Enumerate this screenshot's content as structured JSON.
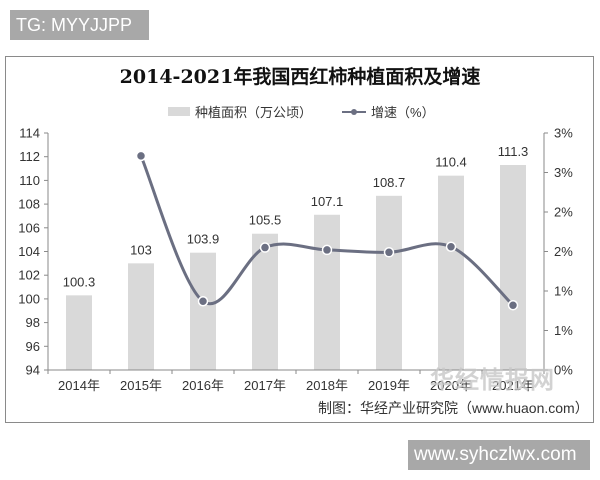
{
  "watermarks": {
    "top_left": "TG: MYYJJPP",
    "bottom_right": "www.syhczlwx.com",
    "logo_text": "华经情报网"
  },
  "chart_data": {
    "type": "bar+line",
    "title": "2014-2021年我国西红柿种植面积及增速",
    "categories": [
      "2014年",
      "2015年",
      "2016年",
      "2017年",
      "2018年",
      "2019年",
      "2020年",
      "2021年"
    ],
    "series": [
      {
        "name": "种植面积（万公顷）",
        "type": "bar",
        "axis": "left",
        "color": "#d9d9d9",
        "values": [
          100.3,
          103,
          103.9,
          105.5,
          107.1,
          108.7,
          110.4,
          111.3
        ],
        "labels": [
          "100.3",
          "103",
          "103.9",
          "105.5",
          "107.1",
          "108.7",
          "110.4",
          "111.3"
        ]
      },
      {
        "name": "增速（%）",
        "type": "line",
        "axis": "right",
        "color": "#6b6f82",
        "values": [
          null,
          2.71,
          0.87,
          1.55,
          1.52,
          1.49,
          1.56,
          0.82
        ]
      }
    ],
    "left_axis": {
      "min": 94,
      "max": 114,
      "step": 2,
      "ticks": [
        "114",
        "112",
        "110",
        "108",
        "106",
        "104",
        "102",
        "100",
        "98",
        "96",
        "94"
      ]
    },
    "right_axis": {
      "min": 0,
      "max": 3,
      "step": 0.5,
      "ticks": [
        "3%",
        "3%",
        "2%",
        "2%",
        "1%",
        "1%",
        "0%"
      ]
    },
    "legend_position": "top",
    "grid": false,
    "source": "制图：华经产业研究院（www.huaon.com）"
  }
}
